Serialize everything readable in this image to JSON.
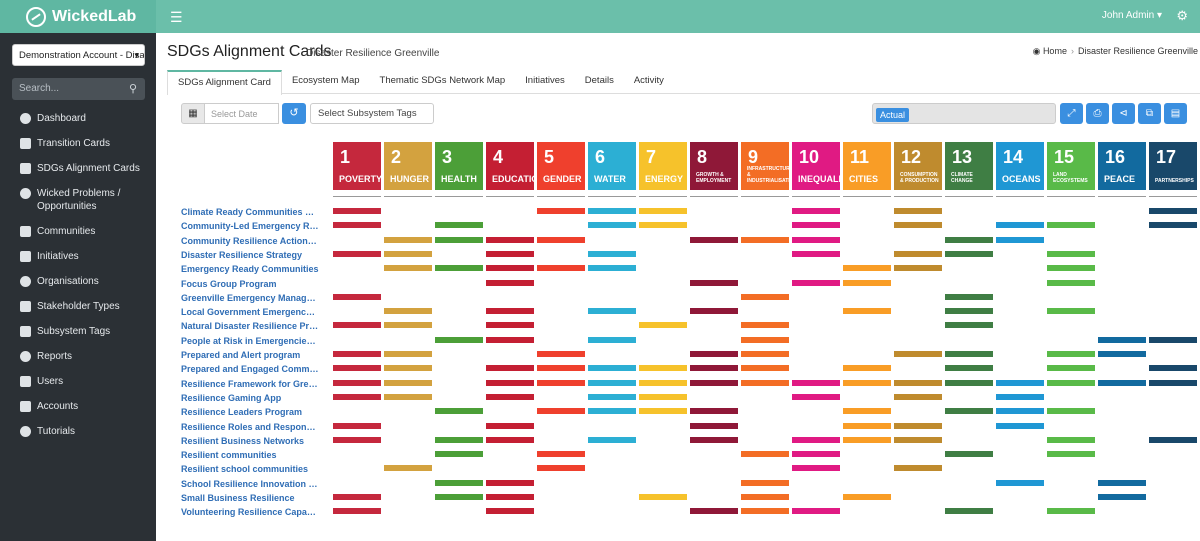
{
  "app": {
    "brand": "WickedLab"
  },
  "sidebar": {
    "account": "Demonstration Account - Disaster",
    "search_placeholder": "Search...",
    "items": [
      {
        "label": "Dashboard",
        "icon": "dashboard-icon"
      },
      {
        "label": "Transition Cards",
        "icon": "checkbox-icon"
      },
      {
        "label": "SDGs Alignment Cards",
        "icon": "target-icon"
      },
      {
        "label": "Wicked Problems / Opportunities",
        "icon": "gears-icon"
      },
      {
        "label": "Communities",
        "icon": "people-icon"
      },
      {
        "label": "Initiatives",
        "icon": "lightbulb-icon"
      },
      {
        "label": "Organisations",
        "icon": "building-icon"
      },
      {
        "label": "Stakeholder Types",
        "icon": "sitemap-icon"
      },
      {
        "label": "Subsystem Tags",
        "icon": "tags-icon"
      },
      {
        "label": "Reports",
        "icon": "pie-chart-icon"
      },
      {
        "label": "Users",
        "icon": "users-icon"
      },
      {
        "label": "Accounts",
        "icon": "user-plus-icon"
      },
      {
        "label": "Tutorials",
        "icon": "youtube-icon"
      }
    ]
  },
  "topbar": {
    "user": "John Admin"
  },
  "header": {
    "title": "SDGs Alignment Cards",
    "subtitle": "Disaster Resilience Greenville",
    "breadcrumb_home": "Home",
    "breadcrumb_current": "Disaster Resilience Greenville"
  },
  "tabs": [
    "SDGs Alignment Card",
    "Ecosystem Map",
    "Thematic SDGs Network Map",
    "Initiatives",
    "Details",
    "Activity"
  ],
  "toolbar": {
    "date_placeholder": "Select Date",
    "tags_placeholder": "Select Subsystem Tags",
    "filter_chip": "Actual"
  },
  "goals": [
    {
      "num": "1",
      "label": "POVERTY",
      "color": "#c5283d"
    },
    {
      "num": "2",
      "label": "HUNGER",
      "color": "#d3a23f"
    },
    {
      "num": "3",
      "label": "HEALTH",
      "color": "#4c9f38"
    },
    {
      "num": "4",
      "label": "EDUCATION",
      "color": "#c41f33"
    },
    {
      "num": "5",
      "label": "GENDER",
      "color": "#ef402d"
    },
    {
      "num": "6",
      "label": "WATER",
      "color": "#2cafd4"
    },
    {
      "num": "7",
      "label": "ENERGY",
      "color": "#f6c22b"
    },
    {
      "num": "8",
      "label": "GROWTH & EMPLOYMENT",
      "color": "#8f1838"
    },
    {
      "num": "9",
      "label": "INFRASTRUCTURE & INDUSTRIALISATION",
      "color": "#f36d25"
    },
    {
      "num": "10",
      "label": "INEQUALITY",
      "color": "#e01a83"
    },
    {
      "num": "11",
      "label": "CITIES",
      "color": "#f99d26"
    },
    {
      "num": "12",
      "label": "CONSUMPTION & PRODUCTION",
      "color": "#bf8b2e"
    },
    {
      "num": "13",
      "label": "CLIMATE CHANGE",
      "color": "#3f7e44"
    },
    {
      "num": "14",
      "label": "OCEANS",
      "color": "#1f97d4"
    },
    {
      "num": "15",
      "label": "LAND ECOSYSTEMS",
      "color": "#59ba48"
    },
    {
      "num": "16",
      "label": "PEACE",
      "color": "#126a9f"
    },
    {
      "num": "17",
      "label": "PARTNERSHIPS",
      "color": "#19486a"
    }
  ],
  "rows": [
    {
      "name": "Climate Ready Communities Greenville",
      "goals": [
        1,
        5,
        6,
        7,
        10,
        12,
        17
      ]
    },
    {
      "name": "Community-Led Emergency Resilience",
      "goals": [
        1,
        3,
        6,
        7,
        10,
        12,
        14,
        15,
        17
      ]
    },
    {
      "name": "Community Resilience Action Plans",
      "goals": [
        2,
        3,
        4,
        5,
        8,
        9,
        10,
        13,
        14
      ]
    },
    {
      "name": "Disaster Resilience Strategy",
      "goals": [
        1,
        2,
        4,
        6,
        10,
        12,
        13,
        15
      ]
    },
    {
      "name": "Emergency Ready Communities",
      "goals": [
        2,
        3,
        4,
        5,
        6,
        11,
        12,
        15
      ]
    },
    {
      "name": "Focus Group Program",
      "goals": [
        4,
        8,
        10,
        11,
        15
      ]
    },
    {
      "name": "Greenville Emergency Management",
      "goals": [
        1,
        9,
        13
      ]
    },
    {
      "name": "Local Government Emergency Management",
      "goals": [
        2,
        4,
        6,
        8,
        11,
        13,
        15
      ]
    },
    {
      "name": "Natural Disaster Resilience Program",
      "goals": [
        1,
        2,
        4,
        7,
        9,
        13
      ]
    },
    {
      "name": "People at Risk in Emergencies Framework",
      "goals": [
        3,
        4,
        6,
        9,
        16,
        17
      ]
    },
    {
      "name": "Prepared and Alert program",
      "goals": [
        1,
        2,
        5,
        8,
        9,
        12,
        13,
        15,
        16
      ]
    },
    {
      "name": "Prepared and Engaged Communities",
      "goals": [
        1,
        2,
        4,
        5,
        6,
        7,
        8,
        9,
        11,
        13,
        15,
        17
      ]
    },
    {
      "name": "Resilience Framework for Greenville",
      "goals": [
        1,
        2,
        4,
        5,
        6,
        7,
        8,
        9,
        10,
        11,
        12,
        13,
        14,
        15,
        16,
        17
      ]
    },
    {
      "name": "Resilience Gaming App",
      "goals": [
        1,
        2,
        4,
        6,
        7,
        10,
        12,
        14
      ]
    },
    {
      "name": "Resilience Leaders Program",
      "goals": [
        3,
        5,
        6,
        7,
        8,
        11,
        13,
        14,
        15
      ]
    },
    {
      "name": "Resilience Roles and Responsibilities",
      "goals": [
        1,
        4,
        8,
        11,
        12,
        14
      ]
    },
    {
      "name": "Resilient Business Networks",
      "goals": [
        1,
        3,
        4,
        6,
        8,
        10,
        11,
        12,
        15,
        17
      ]
    },
    {
      "name": "Resilient communities",
      "goals": [
        3,
        5,
        9,
        10,
        13,
        15
      ]
    },
    {
      "name": "Resilient school communities",
      "goals": [
        2,
        5,
        10,
        12
      ]
    },
    {
      "name": "School Resilience Innovation Challenge",
      "goals": [
        3,
        4,
        9,
        14,
        16
      ]
    },
    {
      "name": "Small Business Resilience",
      "goals": [
        1,
        3,
        4,
        7,
        9,
        11,
        16
      ]
    },
    {
      "name": "Volunteering Resilience Capacity Building",
      "goals": [
        1,
        4,
        8,
        9,
        10,
        13,
        15
      ]
    }
  ]
}
